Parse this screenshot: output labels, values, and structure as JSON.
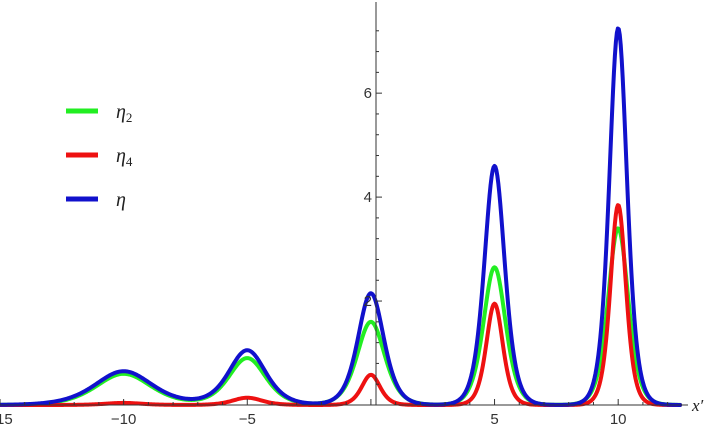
{
  "chart_data": {
    "type": "line",
    "xlabel": "x′",
    "ylabel": "",
    "xlim": [
      -15,
      12.5
    ],
    "ylim": [
      0,
      7.6
    ],
    "x_ticks": [
      -15,
      -10,
      -5,
      5,
      10
    ],
    "y_ticks": [
      2,
      4,
      6
    ],
    "grid": false,
    "legend_position": "left",
    "series": [
      {
        "name": "η2",
        "legend_label": {
          "base": "η",
          "sub": "2"
        },
        "color": "#22ee22",
        "peaks": [
          {
            "x": -10,
            "y": 0.6,
            "width": 1.5
          },
          {
            "x": -5,
            "y": 0.9,
            "width": 1.0
          },
          {
            "x": 0,
            "y": 1.6,
            "width": 0.75
          },
          {
            "x": 5,
            "y": 2.65,
            "width": 0.6
          },
          {
            "x": 10,
            "y": 3.4,
            "width": 0.55
          }
        ]
      },
      {
        "name": "η4",
        "legend_label": {
          "base": "η",
          "sub": "4"
        },
        "color": "#ee1111",
        "peaks": [
          {
            "x": -10,
            "y": 0.04,
            "width": 1.0
          },
          {
            "x": -5,
            "y": 0.14,
            "width": 0.8
          },
          {
            "x": 0,
            "y": 0.58,
            "width": 0.5
          },
          {
            "x": 5,
            "y": 1.95,
            "width": 0.45
          },
          {
            "x": 10,
            "y": 3.85,
            "width": 0.42
          }
        ]
      },
      {
        "name": "η",
        "legend_label": {
          "base": "η",
          "sub": ""
        },
        "color": "#1111cc",
        "peaks": [
          {
            "x": -10,
            "y": 0.65,
            "width": 1.55
          },
          {
            "x": -5,
            "y": 1.05,
            "width": 1.0
          },
          {
            "x": 0,
            "y": 2.15,
            "width": 0.7
          },
          {
            "x": 5,
            "y": 4.6,
            "width": 0.55
          },
          {
            "x": 10,
            "y": 7.25,
            "width": 0.48
          }
        ]
      }
    ]
  }
}
